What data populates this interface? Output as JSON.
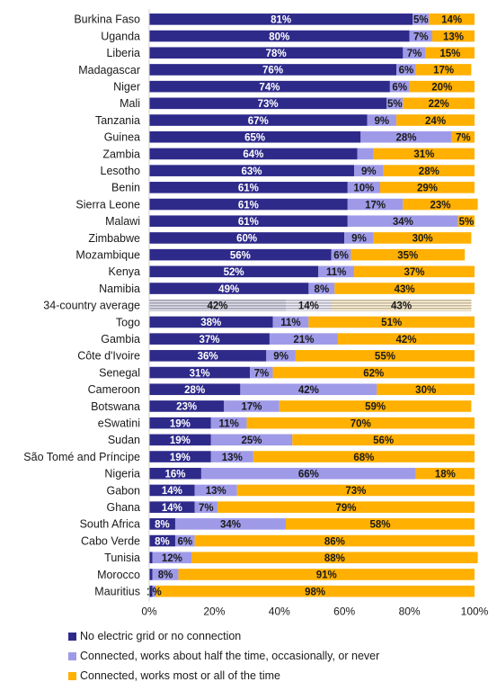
{
  "colors": {
    "no_connection": "#2e2a8a",
    "unreliable": "#9f9ae8",
    "reliable": "#ffb000",
    "label_on_dark": "#ffffff",
    "label_on_light": "#1a1a1a"
  },
  "chart_data": {
    "type": "bar",
    "orientation": "horizontal",
    "stacked": true,
    "x_axis": {
      "min": 0,
      "max": 100,
      "ticks": [
        "0%",
        "20%",
        "40%",
        "60%",
        "80%",
        "100%"
      ]
    },
    "grid": false,
    "legend_position": "bottom",
    "categories": [
      "Burkina Faso",
      "Uganda",
      "Liberia",
      "Madagascar",
      "Niger",
      "Mali",
      "Tanzania",
      "Guinea",
      "Zambia",
      "Lesotho",
      "Benin",
      "Sierra Leone",
      "Malawi",
      "Zimbabwe",
      "Mozambique",
      "Kenya",
      "Namibia",
      "34-country average",
      "Togo",
      "Gambia",
      "Côte d'Ivoire",
      "Senegal",
      "Cameroon",
      "Botswana",
      "eSwatini",
      "Sudan",
      "São Tomé and Príncipe",
      "Nigeria",
      "Gabon",
      "Ghana",
      "South Africa",
      "Cabo Verde",
      "Tunisia",
      "Morocco",
      "Mauritius"
    ],
    "highlight_category": "34-country average",
    "series": [
      {
        "name": "No electric grid or no connection",
        "values": [
          81,
          80,
          78,
          76,
          74,
          73,
          67,
          65,
          64,
          63,
          61,
          61,
          61,
          60,
          56,
          52,
          49,
          42,
          38,
          37,
          36,
          31,
          28,
          23,
          19,
          19,
          19,
          16,
          14,
          14,
          8,
          8,
          1,
          1,
          1
        ],
        "labels": [
          "81%",
          "80%",
          "78%",
          "76%",
          "74%",
          "73%",
          "67%",
          "65%",
          "64%",
          "63%",
          "61%",
          "61%",
          "61%",
          "60%",
          "56%",
          "52%",
          "49%",
          "42%",
          "38%",
          "37%",
          "36%",
          "31%",
          "28%",
          "23%",
          "19%",
          "19%",
          "19%",
          "16%",
          "14%",
          "14%",
          "8%",
          "8%",
          "",
          "",
          ""
        ]
      },
      {
        "name": "Connected, works about half the time, occasionally, or never",
        "values": [
          5,
          7,
          7,
          6,
          6,
          5,
          9,
          28,
          5,
          9,
          10,
          17,
          34,
          9,
          6,
          11,
          8,
          14,
          11,
          21,
          9,
          7,
          42,
          17,
          11,
          25,
          13,
          66,
          13,
          7,
          34,
          6,
          12,
          8,
          1
        ],
        "labels": [
          "5%",
          "7%",
          "7%",
          "6%",
          "6%",
          "5%",
          "9%",
          "28%",
          "",
          "9%",
          "10%",
          "17%",
          "34%",
          "9%",
          "6%",
          "11%",
          "8%",
          "14%",
          "11%",
          "21%",
          "9%",
          "7%",
          "42%",
          "17%",
          "11%",
          "25%",
          "13%",
          "66%",
          "13%",
          "7%",
          "34%",
          "6%",
          "12%",
          "8%",
          "1%"
        ]
      },
      {
        "name": "Connected, works most or all of the time",
        "values": [
          14,
          13,
          15,
          17,
          20,
          22,
          24,
          7,
          31,
          28,
          29,
          23,
          5,
          30,
          35,
          37,
          43,
          43,
          51,
          42,
          55,
          62,
          30,
          59,
          70,
          56,
          68,
          18,
          73,
          79,
          58,
          86,
          88,
          91,
          98
        ],
        "labels": [
          "14%",
          "13%",
          "15%",
          "17%",
          "20%",
          "22%",
          "24%",
          "7%",
          "31%",
          "28%",
          "29%",
          "23%",
          "5%",
          "30%",
          "35%",
          "37%",
          "43%",
          "43%",
          "51%",
          "42%",
          "55%",
          "62%",
          "30%",
          "59%",
          "70%",
          "56%",
          "68%",
          "18%",
          "73%",
          "79%",
          "58%",
          "86%",
          "88%",
          "91%",
          "98%"
        ]
      }
    ]
  }
}
